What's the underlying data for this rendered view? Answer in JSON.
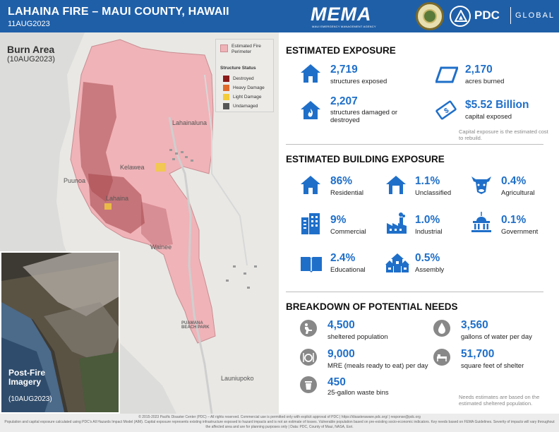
{
  "header": {
    "title": "LAHAINA FIRE – MAUI COUNTY, HAWAII",
    "date": "11AUG2023",
    "mema_logo": "MEMA",
    "mema_sub": "MAUI EMERGENCY MANAGEMENT AGENCY",
    "pdc_logo": "PDC",
    "pdc_global": "GLOBAL"
  },
  "map": {
    "title": "Burn Area",
    "date": "(10AUG2023)",
    "places": {
      "lahainaluna": "Lahainaluna",
      "kelawea": "Kelawea",
      "puunoa": "Puunoa",
      "lahaina": "Lahaina",
      "wainee": "Wainee",
      "puamana": "PUAMANA BEACH PARK",
      "launiupoko": "Launiupoko"
    },
    "legend": {
      "perimeter": "Estimated Fire Perimeter",
      "status_header": "Structure Status",
      "destroyed": "Destroyed",
      "heavy": "Heavy Damage",
      "light": "Light Damage",
      "undamaged": "Undamaged"
    },
    "inset": {
      "title": "Post-Fire Imagery",
      "date": "(10AUG2023)"
    }
  },
  "exposure": {
    "title": "ESTIMATED EXPOSURE",
    "structures": {
      "value": "2,719",
      "label": "structures exposed",
      "icon": "house-icon"
    },
    "acres": {
      "value": "2,170",
      "label": "acres burned",
      "icon": "area-icon"
    },
    "damaged": {
      "value": "2,207",
      "label": "structures damaged or destroyed",
      "icon": "house-fire-icon"
    },
    "capital": {
      "value": "$5.52 Billion",
      "label": "capital exposed",
      "icon": "money-icon"
    },
    "note": "Capital exposure is the estimated cost to rebuild."
  },
  "building": {
    "title": "ESTIMATED BUILDING EXPOSURE",
    "items": [
      {
        "value": "86%",
        "label": "Residential",
        "icon": "house-icon"
      },
      {
        "value": "1.1%",
        "label": "Unclassified",
        "icon": "house-outline-icon"
      },
      {
        "value": "0.4%",
        "label": "Agricultural",
        "icon": "cow-icon"
      },
      {
        "value": "9%",
        "label": "Commercial",
        "icon": "office-building-icon"
      },
      {
        "value": "1.0%",
        "label": "Industrial",
        "icon": "factory-icon"
      },
      {
        "value": "0.1%",
        "label": "Government",
        "icon": "capitol-icon"
      },
      {
        "value": "2.4%",
        "label": "Educational",
        "icon": "book-icon"
      },
      {
        "value": "0.5%",
        "label": "Assembly",
        "icon": "assembly-icon"
      }
    ]
  },
  "needs": {
    "title": "BREAKDOWN OF POTENTIAL NEEDS",
    "items": [
      {
        "value": "4,500",
        "label": "sheltered population",
        "icon": "shelter-icon"
      },
      {
        "value": "3,560",
        "label": "gallons of water per day",
        "icon": "water-drop-icon"
      },
      {
        "value": "9,000",
        "label": "MRE (meals ready to eat) per day",
        "icon": "meal-icon"
      },
      {
        "value": "51,700",
        "label": "square feet of shelter",
        "icon": "cot-icon"
      },
      {
        "value": "450",
        "label": "25-gallon waste bins",
        "icon": "trash-bin-icon"
      }
    ],
    "note": "Needs estimates are based on the estimated sheltered population."
  },
  "footer": {
    "line1": "© 2015-2023 Pacific Disaster Center (PDC) – All rights reserved. Commercial use is permitted only with explicit approval of PDC  |  https://disasteraware.pdc.org/  |  response@pdc.org",
    "line2": "Population and capital exposure calculated using PDC's All Hazards Impact Model (AIM). Capital exposure represents existing infrastructure exposed to hazard impacts and is not an estimate of losses. Vulnerable population based on pre-existing socio-economic indicators. Key needs based on FEMA Guidelines. Severity of impacts will vary throughout the affected area and are for planning purposes only | Data: PDC, County of Maui, NASA, Esri."
  },
  "colors": {
    "header_blue": "#1f5fa8",
    "accent_blue": "#1f6fc9",
    "perimeter_fill": "#f0b3b8",
    "destroyed": "#8b1a1a",
    "heavy": "#e06a2a",
    "light": "#f3cc3a",
    "undamaged": "#555555"
  }
}
